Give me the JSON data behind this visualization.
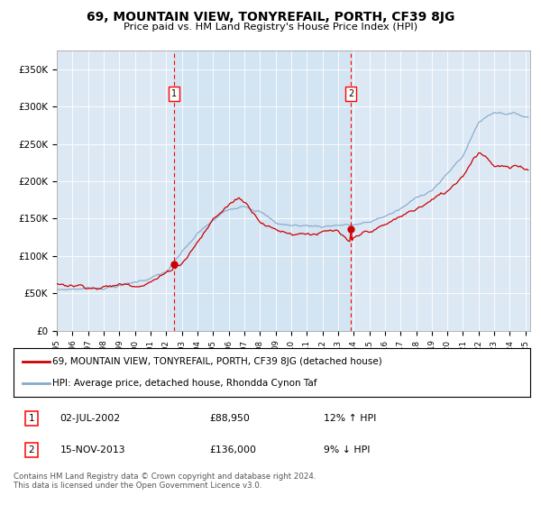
{
  "title": "69, MOUNTAIN VIEW, TONYREFAIL, PORTH, CF39 8JG",
  "subtitle": "Price paid vs. HM Land Registry's House Price Index (HPI)",
  "bg_color": "#dce9f5",
  "fill_color": "#ccdff0",
  "line1_color": "#cc0000",
  "line2_color": "#88aacc",
  "legend1": "69, MOUNTAIN VIEW, TONYREFAIL, PORTH, CF39 8JG (detached house)",
  "legend2": "HPI: Average price, detached house, Rhondda Cynon Taf",
  "footer": "Contains HM Land Registry data © Crown copyright and database right 2024.\nThis data is licensed under the Open Government Licence v3.0.",
  "ylim": [
    0,
    375000
  ],
  "yticks": [
    0,
    50000,
    100000,
    150000,
    200000,
    250000,
    300000,
    350000
  ],
  "ytick_labels": [
    "£0",
    "£50K",
    "£100K",
    "£150K",
    "£200K",
    "£250K",
    "£300K",
    "£350K"
  ],
  "sale1_year": 2002.5,
  "sale1_val": 88950,
  "sale2_year": 2013.87,
  "sale2_val": 136000,
  "row1": [
    "1",
    "02-JUL-2002",
    "£88,950",
    "12% ↑ HPI"
  ],
  "row2": [
    "2",
    "15-NOV-2013",
    "£136,000",
    "9% ↓ HPI"
  ]
}
